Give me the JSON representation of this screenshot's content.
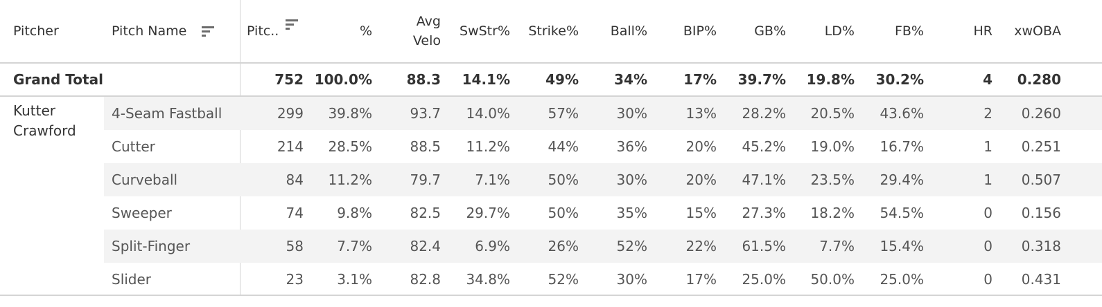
{
  "headers": {
    "pitcher": "Pitcher",
    "pitch_name": "Pitch Name",
    "pitches": "Pitc..",
    "pct": "%",
    "avg_velo_1": "Avg",
    "avg_velo_2": "Velo",
    "swstr": "SwStr%",
    "strike": "Strike%",
    "ball": "Ball%",
    "bip": "BIP%",
    "gb": "GB%",
    "ld": "LD%",
    "fb": "FB%",
    "hr": "HR",
    "xwoba": "xwOBA"
  },
  "grand_total": {
    "label": "Grand Total",
    "values": [
      "752",
      "100.0%",
      "88.3",
      "14.1%",
      "49%",
      "34%",
      "17%",
      "39.7%",
      "19.8%",
      "30.2%",
      "4",
      "0.280"
    ]
  },
  "pitcher_name": "Kutter Crawford",
  "rows": [
    {
      "pitch": "4-Seam Fastball",
      "values": [
        "299",
        "39.8%",
        "93.7",
        "14.0%",
        "57%",
        "30%",
        "13%",
        "28.2%",
        "20.5%",
        "43.6%",
        "2",
        "0.260"
      ]
    },
    {
      "pitch": "Cutter",
      "values": [
        "214",
        "28.5%",
        "88.5",
        "11.2%",
        "44%",
        "36%",
        "20%",
        "45.2%",
        "19.0%",
        "16.7%",
        "1",
        "0.251"
      ]
    },
    {
      "pitch": "Curveball",
      "values": [
        "84",
        "11.2%",
        "79.7",
        "7.1%",
        "50%",
        "30%",
        "20%",
        "47.1%",
        "23.5%",
        "29.4%",
        "1",
        "0.507"
      ]
    },
    {
      "pitch": "Sweeper",
      "values": [
        "74",
        "9.8%",
        "82.5",
        "29.7%",
        "50%",
        "35%",
        "15%",
        "27.3%",
        "18.2%",
        "54.5%",
        "0",
        "0.156"
      ]
    },
    {
      "pitch": "Split-Finger",
      "values": [
        "58",
        "7.7%",
        "82.4",
        "6.9%",
        "26%",
        "52%",
        "22%",
        "61.5%",
        "7.7%",
        "15.4%",
        "0",
        "0.318"
      ]
    },
    {
      "pitch": "Slider",
      "values": [
        "23",
        "3.1%",
        "82.8",
        "34.8%",
        "52%",
        "30%",
        "17%",
        "25.0%",
        "50.0%",
        "25.0%",
        "0",
        "0.431"
      ]
    }
  ],
  "icons": {
    "pitch_name_sort": "sort-descending-icon",
    "pitches_sort": "sort-descending-icon"
  },
  "colors": {
    "shaded_row": "#f3f3f3",
    "divider": "#d4d4d4",
    "text": "#333333"
  }
}
